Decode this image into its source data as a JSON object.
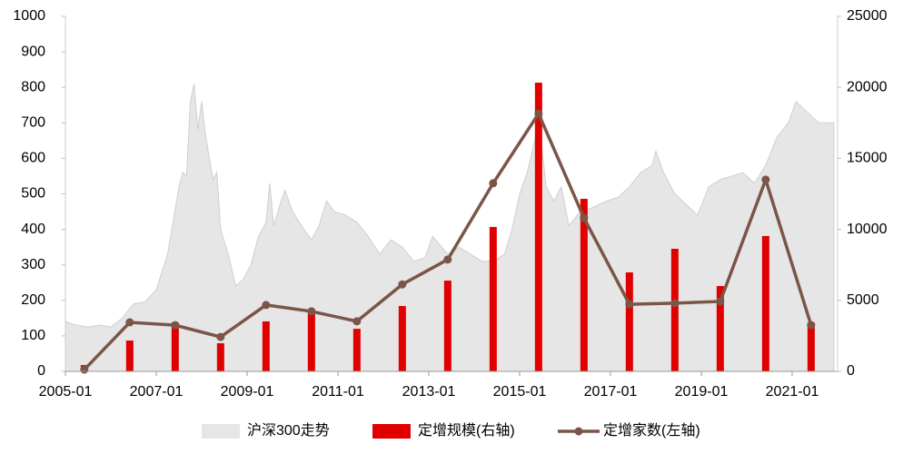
{
  "chart_data": {
    "type": "combo",
    "xlim": [
      "2005-01",
      "2022-01"
    ],
    "xticks": [
      "2005-01",
      "2007-01",
      "2009-01",
      "2011-01",
      "2013-01",
      "2015-01",
      "2017-01",
      "2019-01",
      "2021-01"
    ],
    "ylim": [
      0,
      1000
    ],
    "yticks": [
      0,
      100,
      200,
      300,
      400,
      500,
      600,
      700,
      800,
      900,
      1000
    ],
    "y2lim": [
      0,
      25000
    ],
    "y2ticks": [
      0,
      5000,
      10000,
      15000,
      20000,
      25000
    ],
    "grid": false,
    "legend": "bottom",
    "series": [
      {
        "name": "沪深300走势",
        "type": "area",
        "color": "#e6e6e6",
        "x": [
          "2005-01",
          "2005-04",
          "2005-07",
          "2005-10",
          "2006-01",
          "2006-04",
          "2006-07",
          "2006-10",
          "2007-01",
          "2007-04",
          "2007-07",
          "2007-08",
          "2007-09",
          "2007-10",
          "2007-11",
          "2007-12",
          "2008-01",
          "2008-02",
          "2008-04",
          "2008-05",
          "2008-06",
          "2008-08",
          "2008-10",
          "2008-12",
          "2009-02",
          "2009-04",
          "2009-06",
          "2009-07",
          "2009-08",
          "2009-10",
          "2009-11",
          "2010-01",
          "2010-04",
          "2010-06",
          "2010-08",
          "2010-10",
          "2010-12",
          "2011-03",
          "2011-06",
          "2011-09",
          "2011-12",
          "2012-03",
          "2012-06",
          "2012-09",
          "2012-12",
          "2013-02",
          "2013-06",
          "2013-09",
          "2013-12",
          "2014-03",
          "2014-06",
          "2014-09",
          "2014-11",
          "2015-01",
          "2015-03",
          "2015-05",
          "2015-06",
          "2015-08",
          "2015-10",
          "2015-12",
          "2016-02",
          "2016-05",
          "2016-08",
          "2016-12",
          "2017-03",
          "2017-06",
          "2017-09",
          "2017-12",
          "2018-01",
          "2018-03",
          "2018-06",
          "2018-09",
          "2018-12",
          "2019-03",
          "2019-06",
          "2019-09",
          "2019-12",
          "2020-03",
          "2020-06",
          "2020-09",
          "2020-12",
          "2021-02",
          "2021-05",
          "2021-08",
          "2021-12"
        ],
        "values": [
          140,
          130,
          125,
          130,
          125,
          150,
          190,
          195,
          230,
          330,
          520,
          560,
          550,
          760,
          810,
          680,
          760,
          665,
          540,
          560,
          400,
          330,
          240,
          260,
          300,
          380,
          420,
          530,
          410,
          480,
          510,
          450,
          400,
          370,
          410,
          480,
          450,
          440,
          420,
          380,
          330,
          370,
          350,
          310,
          320,
          380,
          330,
          350,
          330,
          310,
          310,
          330,
          400,
          500,
          560,
          650,
          720,
          520,
          480,
          520,
          410,
          450,
          460,
          480,
          490,
          520,
          560,
          580,
          620,
          560,
          500,
          470,
          440,
          520,
          540,
          550,
          560,
          530,
          580,
          660,
          700,
          760,
          730,
          700,
          700
        ]
      },
      {
        "name": "定增规模(右轴)",
        "type": "bar",
        "axis": "y2",
        "color": "#e00000",
        "x": [
          "2005-06",
          "2006-06",
          "2007-06",
          "2008-06",
          "2009-06",
          "2010-06",
          "2011-06",
          "2012-06",
          "2013-06",
          "2014-06",
          "2015-06",
          "2016-06",
          "2017-06",
          "2018-06",
          "2019-06",
          "2020-06",
          "2021-06"
        ],
        "values": [
          450,
          2170,
          3450,
          1980,
          3520,
          4220,
          3000,
          4600,
          6390,
          10170,
          20330,
          12150,
          6970,
          8630,
          6010,
          9530,
          3450
        ]
      },
      {
        "name": "定增家数(左轴)",
        "type": "line",
        "color": "#7b5548",
        "x": [
          "2005-06",
          "2006-06",
          "2007-06",
          "2008-06",
          "2009-06",
          "2010-06",
          "2011-06",
          "2012-06",
          "2013-06",
          "2014-06",
          "2015-06",
          "2016-06",
          "2017-06",
          "2018-06",
          "2019-06",
          "2020-06",
          "2021-06"
        ],
        "values": [
          5,
          138,
          130,
          97,
          187,
          169,
          141,
          245,
          315,
          530,
          726,
          432,
          189,
          192,
          197,
          540,
          130
        ]
      }
    ]
  }
}
